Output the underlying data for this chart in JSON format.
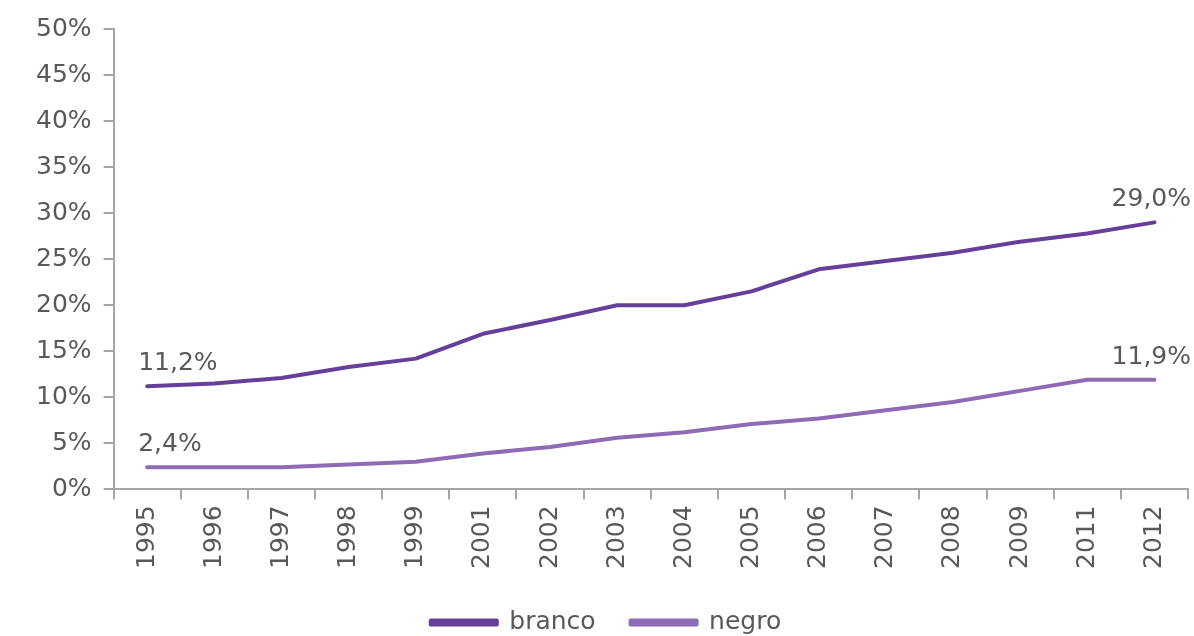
{
  "chart_data": {
    "type": "line",
    "categories": [
      "1995",
      "1996",
      "1997",
      "1998",
      "1999",
      "2001",
      "2002",
      "2003",
      "2004",
      "2005",
      "2006",
      "2007",
      "2008",
      "2009",
      "2011",
      "2012"
    ],
    "series": [
      {
        "name": "branco",
        "color": "#65409a",
        "values": [
          11.2,
          11.5,
          12.1,
          13.3,
          14.2,
          16.9,
          18.4,
          20.0,
          20.0,
          21.5,
          23.9,
          24.8,
          25.7,
          26.9,
          27.8,
          29.0
        ],
        "value_labels": [
          "11,2%",
          null,
          null,
          null,
          null,
          null,
          null,
          null,
          null,
          null,
          null,
          null,
          null,
          null,
          null,
          "29,0%"
        ]
      },
      {
        "name": "negro",
        "color": "#8d6bb5",
        "values": [
          2.4,
          2.4,
          2.4,
          2.7,
          3.0,
          3.9,
          4.6,
          5.6,
          6.2,
          7.1,
          7.7,
          8.6,
          9.5,
          10.7,
          11.9,
          11.9
        ],
        "value_labels": [
          "2,4%",
          null,
          null,
          null,
          null,
          null,
          null,
          null,
          null,
          null,
          null,
          null,
          null,
          null,
          null,
          "11,9%"
        ]
      }
    ],
    "ylim": [
      0,
      50
    ],
    "yticks": [
      {
        "value": 0,
        "label": "0%"
      },
      {
        "value": 5,
        "label": "5%"
      },
      {
        "value": 10,
        "label": "10%"
      },
      {
        "value": 15,
        "label": "15%"
      },
      {
        "value": 20,
        "label": "20%"
      },
      {
        "value": 25,
        "label": "25%"
      },
      {
        "value": 30,
        "label": "30%"
      },
      {
        "value": 35,
        "label": "35%"
      },
      {
        "value": 40,
        "label": "40%"
      },
      {
        "value": 45,
        "label": "45%"
      },
      {
        "value": 50,
        "label": "50%"
      }
    ],
    "grid": false,
    "legend": "bottom",
    "marker": "none",
    "line_style": "solid"
  }
}
